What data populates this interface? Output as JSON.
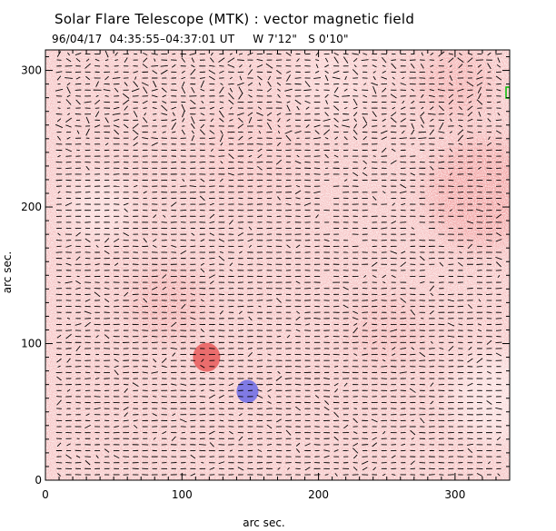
{
  "header": {
    "title": "Solar Flare Telescope (MTK) : vector magnetic field",
    "subtitle": "96/04/17  04:35:55–04:37:01 UT     W 7'12\"   S 0'10\""
  },
  "chart_data": {
    "type": "heatmap",
    "title": "Solar Flare Telescope (MTK) : vector magnetic field",
    "xlabel": "arc sec.",
    "ylabel": "arc sec.",
    "xlim": [
      0,
      340
    ],
    "ylim": [
      0,
      315
    ],
    "xticks": [
      0,
      100,
      200,
      300
    ],
    "yticks": [
      0,
      100,
      200,
      300
    ],
    "colors": {
      "positive": "#f08c8c",
      "negative": "#6a6ae6",
      "background": "#fbeaea",
      "vectors": "#000000",
      "marker": "#00c000"
    },
    "features": [
      {
        "polarity": "positive",
        "x": 118,
        "y": 90,
        "radius": 10
      },
      {
        "polarity": "negative",
        "x": 148,
        "y": 65,
        "radius": 8
      }
    ]
  }
}
